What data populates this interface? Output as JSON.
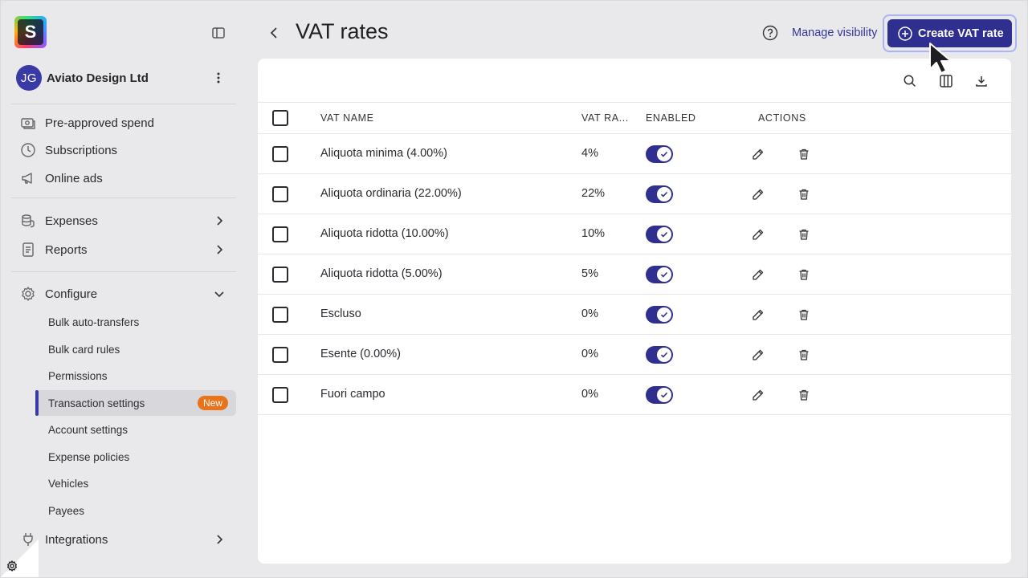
{
  "app": {
    "logo_letter": "S",
    "org_initials": "JG",
    "org_name": "Aviato Design Ltd"
  },
  "sidebar": {
    "items": [
      {
        "label": "Pre-approved spend",
        "icon": "money-icon"
      },
      {
        "label": "Subscriptions",
        "icon": "clock-icon"
      },
      {
        "label": "Online ads",
        "icon": "megaphone-icon"
      }
    ],
    "groups": [
      {
        "label": "Expenses",
        "icon": "coins-icon",
        "expanded": false
      },
      {
        "label": "Reports",
        "icon": "report-icon",
        "expanded": false
      },
      {
        "label": "Configure",
        "icon": "gear-icon",
        "expanded": true
      }
    ],
    "configure_items": [
      {
        "label": "Bulk auto-transfers"
      },
      {
        "label": "Bulk card rules"
      },
      {
        "label": "Permissions"
      },
      {
        "label": "Transaction settings",
        "active": true,
        "badge": "New"
      },
      {
        "label": "Account settings"
      },
      {
        "label": "Expense policies"
      },
      {
        "label": "Vehicles"
      },
      {
        "label": "Payees"
      }
    ],
    "integrations": {
      "label": "Integrations",
      "icon": "plug-icon"
    }
  },
  "header": {
    "title": "VAT rates",
    "manage_visibility": "Manage visibility",
    "create_button": "Create VAT rate"
  },
  "table": {
    "columns": [
      "VAT NAME",
      "VAT RA...",
      "ENABLED",
      "ACTIONS"
    ],
    "rows": [
      {
        "name": "Aliquota minima (4.00%)",
        "rate": "4%",
        "enabled": true
      },
      {
        "name": "Aliquota ordinaria (22.00%)",
        "rate": "22%",
        "enabled": true
      },
      {
        "name": "Aliquota ridotta (10.00%)",
        "rate": "10%",
        "enabled": true
      },
      {
        "name": "Aliquota ridotta (5.00%)",
        "rate": "5%",
        "enabled": true
      },
      {
        "name": "Escluso",
        "rate": "0%",
        "enabled": true
      },
      {
        "name": "Esente (0.00%)",
        "rate": "0%",
        "enabled": true
      },
      {
        "name": "Fuori campo",
        "rate": "0%",
        "enabled": true
      }
    ]
  },
  "colors": {
    "accent": "#2f2f8f",
    "badge": "#e8731a",
    "background": "#e9e9ec"
  }
}
